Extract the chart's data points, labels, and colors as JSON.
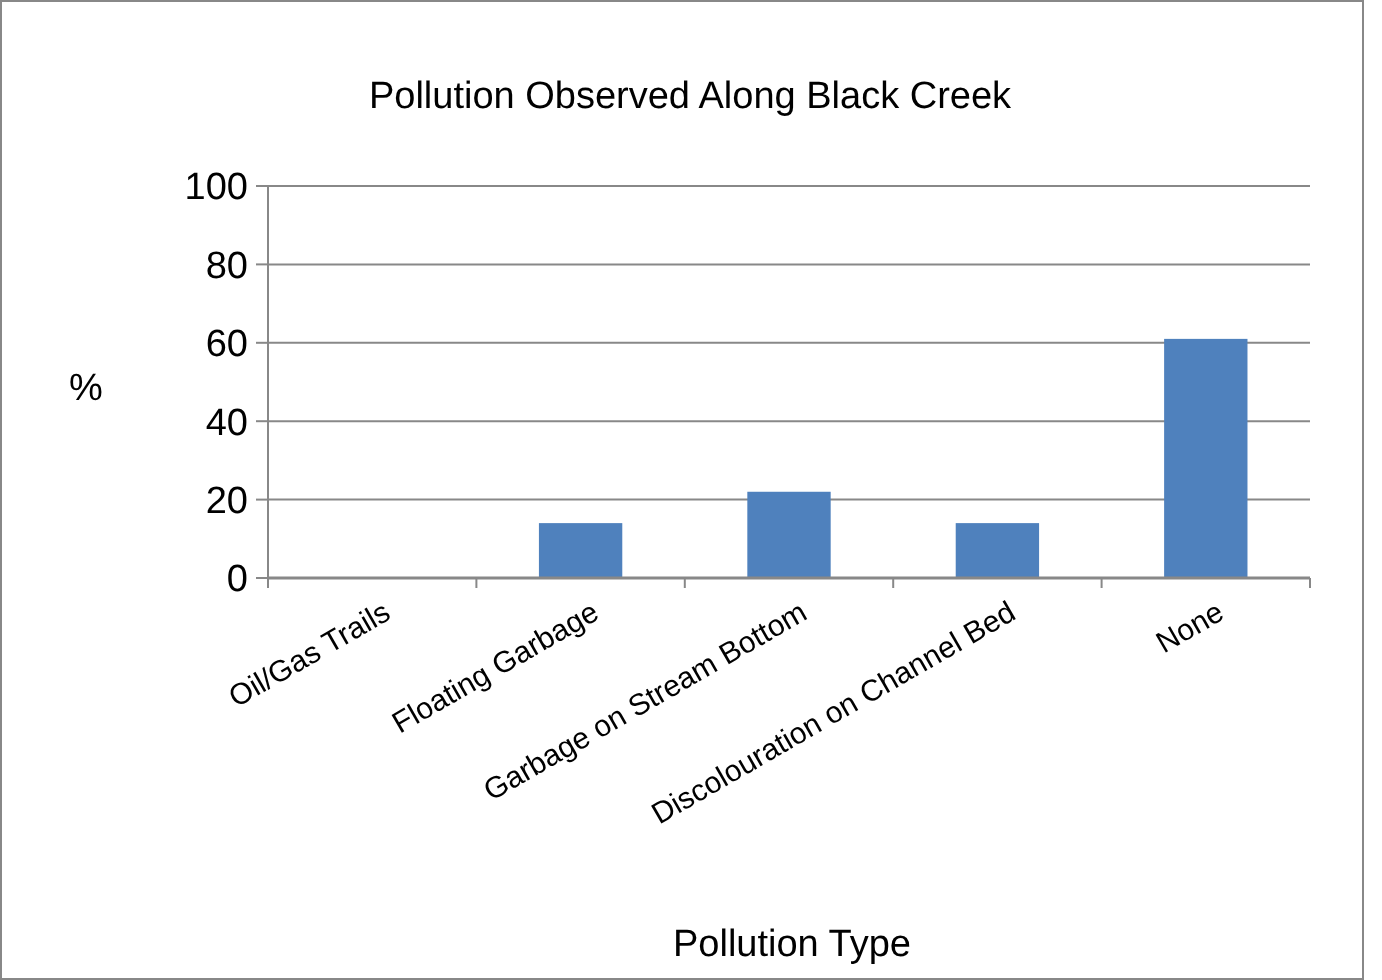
{
  "chart_data": {
    "type": "bar",
    "title": "Pollution Observed Along Black Creek",
    "xlabel": "Pollution Type",
    "ylabel": "%",
    "categories": [
      "Oil/Gas Trails",
      "Floating Garbage",
      "Garbage on Stream Bottom",
      "Discolouration on Channel Bed",
      "None"
    ],
    "values": [
      0,
      14,
      22,
      14,
      61
    ],
    "color": "#4f81bd",
    "ylim": [
      0,
      100
    ],
    "yticks": [
      0,
      20,
      40,
      60,
      80,
      100
    ],
    "grid": "y"
  }
}
